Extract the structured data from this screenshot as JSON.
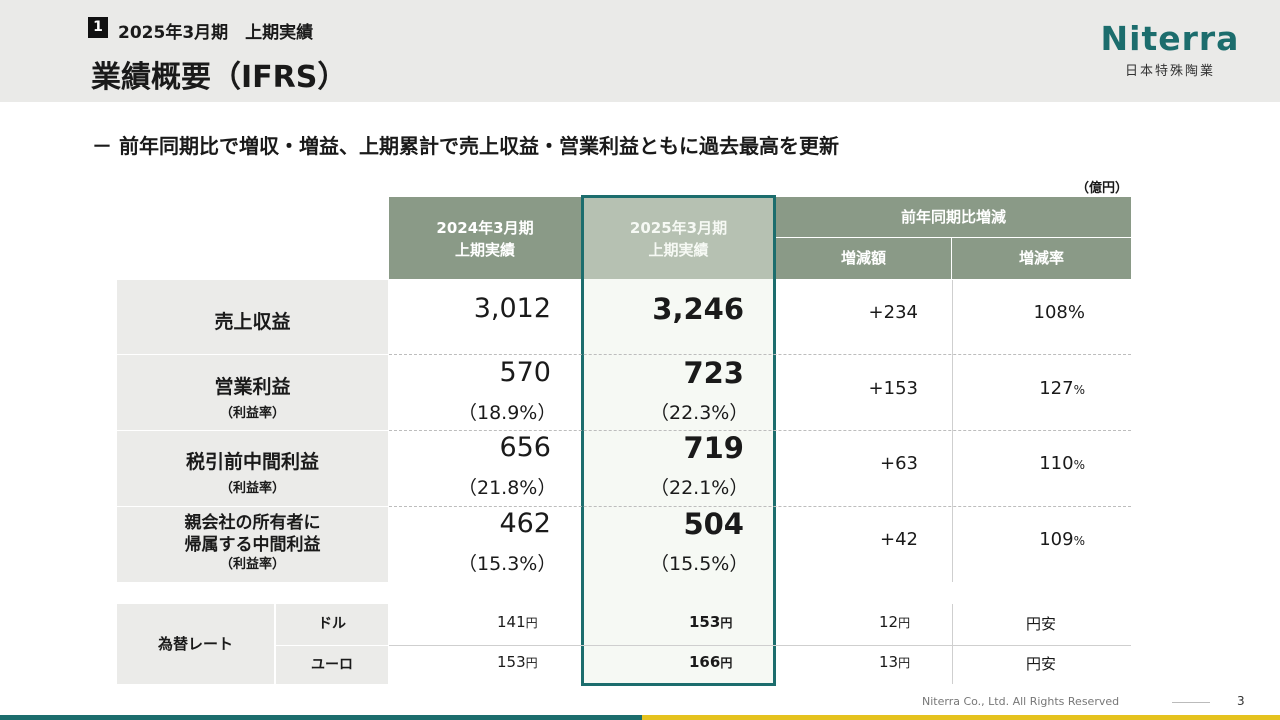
{
  "header": {
    "section_number": "1",
    "section_title": "2025年3月期　上期実績",
    "page_title": "業績概要（IFRS）",
    "logo_word": "Niterra",
    "logo_sub": "日本特殊陶業"
  },
  "headline": "－ 前年同期比で増収・増益、上期累計で売上収益・営業利益ともに過去最高を更新",
  "unit": "（億円）",
  "table": {
    "col_prev": [
      "2024年3月期",
      "上期実績"
    ],
    "col_curr": [
      "2025年3月期",
      "上期実績"
    ],
    "col_change_group": "前年同期比増減",
    "col_change_amount": "増減額",
    "col_change_rate": "増減率",
    "rows": [
      {
        "label": "売上収益",
        "sub": "",
        "prev": "3,012",
        "prev_pct": "",
        "curr": "3,246",
        "curr_pct": "",
        "change": "+234",
        "rate": "108%",
        "rate_num": "108",
        "rate_unit": "%"
      },
      {
        "label": "営業利益",
        "sub": "（利益率）",
        "prev": "570",
        "prev_pct": "（18.9%）",
        "curr": "723",
        "curr_pct": "（22.3%）",
        "change": "+153",
        "rate_num": "127",
        "rate_unit": "%"
      },
      {
        "label": "税引前中間利益",
        "sub": "（利益率）",
        "prev": "656",
        "prev_pct": "（21.8%）",
        "curr": "719",
        "curr_pct": "（22.1%）",
        "change": "+63",
        "rate_num": "110",
        "rate_unit": "%"
      },
      {
        "label_line1": "親会社の所有者に",
        "label_line2": "帰属する中間利益",
        "sub": "（利益率）",
        "prev": "462",
        "prev_pct": "（15.3%）",
        "curr": "504",
        "curr_pct": "（15.5%）",
        "change": "+42",
        "rate_num": "109",
        "rate_unit": "%"
      }
    ],
    "fx": {
      "label": "為替レート",
      "rows": [
        {
          "currency": "ドル",
          "prev": "141",
          "curr": "153",
          "change": "12",
          "unit": "円",
          "note": "円安"
        },
        {
          "currency": "ユーロ",
          "prev": "153",
          "curr": "166",
          "change": "13",
          "unit": "円",
          "note": "円安"
        }
      ]
    }
  },
  "footer": {
    "copyright": "Niterra Co., Ltd. All Rights Reserved",
    "page": "3"
  },
  "colors": {
    "teal": "#1c6d6d",
    "header_green": "#8a9a87",
    "yellow": "#e5c21e"
  }
}
